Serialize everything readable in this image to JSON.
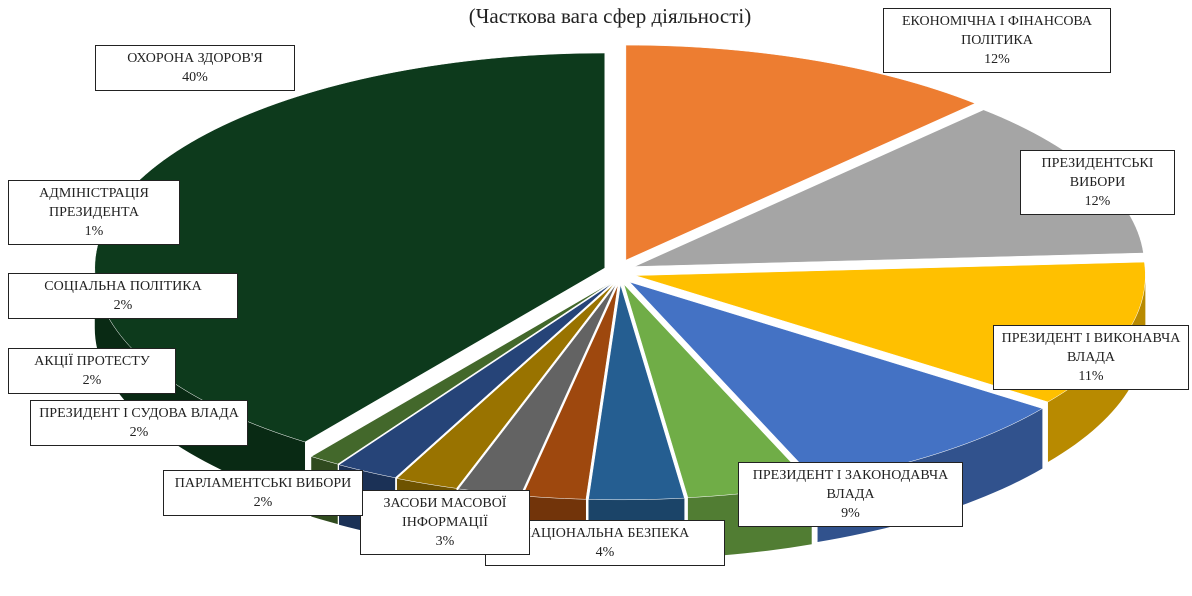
{
  "chart_data": {
    "type": "pie",
    "title": "(Часткова вага сфер діяльності)",
    "categories": [
      "ОХОРОНА ЗДОРОВ'Я",
      "ЕКОНОМІЧНА І ФІНАНСОВА ПОЛІТИКА",
      "ПРЕЗИДЕНТСЬКІ ВИБОРИ",
      "ПРЕЗИДЕНТ І ВИКОНАВЧА ВЛАДА",
      "ПРЕЗИДЕНТ І ЗАКОНОДАВЧА ВЛАДА",
      "НАЦІОНАЛЬНА БЕЗПЕКА",
      "ЗАСОБИ МАСОВОЇ ІНФОРМАЦІЇ",
      "ПАРЛАМЕНТСЬКІ ВИБОРИ",
      "ПРЕЗИДЕНТ І СУДОВА ВЛАДА",
      "АКЦІЇ ПРОТЕСТУ",
      "СОЦІАЛЬНА ПОЛІТИКА",
      "АДМІНІСТРАЦІЯ ПРЕЗИДЕНТА"
    ],
    "values": [
      40,
      12,
      12,
      11,
      9,
      4,
      3,
      2,
      2,
      2,
      2,
      1
    ],
    "value_labels": [
      "40%",
      "12%",
      "12%",
      "11%",
      "9%",
      "4%",
      "3%",
      "2%",
      "2%",
      "2%",
      "2%",
      "1%"
    ],
    "colors": [
      "#0d3a1c",
      "#ed7d31",
      "#a5a5a5",
      "#ffc000",
      "#4472c4",
      "#70ad47",
      "#255e91",
      "#9e480e",
      "#636363",
      "#997300",
      "#264478",
      "#43682b"
    ]
  }
}
